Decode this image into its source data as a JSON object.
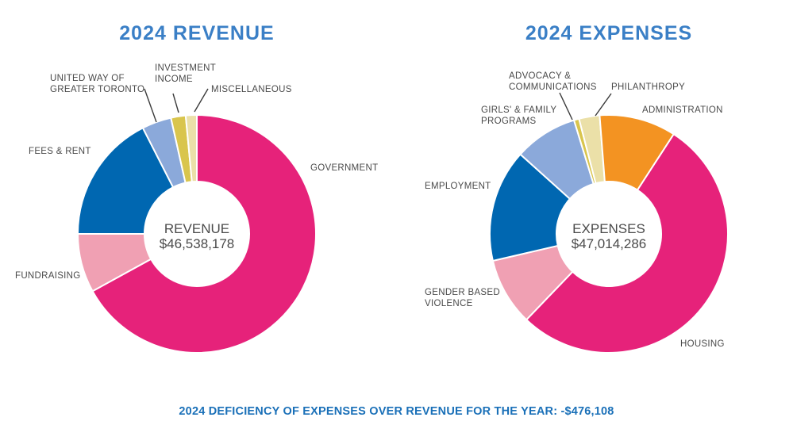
{
  "chart_data": [
    {
      "type": "pie",
      "variant": "donut",
      "title": "2024 REVENUE",
      "center_label": "REVENUE",
      "center_value": "$46,538,178",
      "start": "top",
      "direction": "clockwise",
      "unit": "percent (estimated from slice angles)",
      "slices": [
        {
          "label": "GOVERNMENT",
          "label_lines": [
            "GOVERNMENT"
          ],
          "value": 67.0,
          "color": "#e6227a"
        },
        {
          "label": "FUNDRAISING",
          "label_lines": [
            "FUNDRAISING"
          ],
          "value": 8.0,
          "color": "#f0a0b3"
        },
        {
          "label": "FEES & RENT",
          "label_lines": [
            "FEES & RENT"
          ],
          "value": 17.5,
          "color": "#0067b1"
        },
        {
          "label": "UNITED WAY OF GREATER TORONTO",
          "label_lines": [
            "UNITED WAY OF",
            "GREATER TORONTO"
          ],
          "value": 4.0,
          "color": "#8ba9da"
        },
        {
          "label": "INVESTMENT INCOME",
          "label_lines": [
            "INVESTMENT",
            "INCOME"
          ],
          "value": 2.0,
          "color": "#d9c54d"
        },
        {
          "label": "MISCELLANEOUS",
          "label_lines": [
            "MISCELLANEOUS"
          ],
          "value": 1.5,
          "color": "#ebe0a8"
        }
      ]
    },
    {
      "type": "pie",
      "variant": "donut",
      "title": "2024 EXPENSES",
      "center_label": "EXPENSES",
      "center_value": "$47,014,286",
      "start": "top",
      "direction": "clockwise",
      "unit": "percent (estimated from slice angles)",
      "slices": [
        {
          "label": "HOUSING",
          "label_lines": [
            "HOUSING"
          ],
          "value": 53.0,
          "color": "#e6227a"
        },
        {
          "label": "GENDER BASED VIOLENCE",
          "label_lines": [
            "GENDER BASED",
            "VIOLENCE"
          ],
          "value": 9.2,
          "color": "#f0a0b3"
        },
        {
          "label": "EMPLOYMENT",
          "label_lines": [
            "EMPLOYMENT"
          ],
          "value": 15.3,
          "color": "#0067b1"
        },
        {
          "label": "GIRLS' & FAMILY PROGRAMS",
          "label_lines": [
            "GIRLS' & FAMILY",
            "PROGRAMS"
          ],
          "value": 8.6,
          "color": "#8ba9da"
        },
        {
          "label": "ADVOCACY & COMMUNICATIONS",
          "label_lines": [
            "ADVOCACY &",
            "COMMUNICATIONS"
          ],
          "value": 0.7,
          "color": "#d9c54d"
        },
        {
          "label": "PHILANTHROPY",
          "label_lines": [
            "PHILANTHROPY"
          ],
          "value": 2.8,
          "color": "#ebe0a8"
        },
        {
          "label": "ADMINISTRATION",
          "label_lines": [
            "ADMINISTRATION"
          ],
          "value": 10.4,
          "color": "#f39322"
        }
      ]
    }
  ],
  "footer": "2024 DEFICIENCY OF EXPENSES OVER REVENUE FOR THE YEAR: -$476,108"
}
